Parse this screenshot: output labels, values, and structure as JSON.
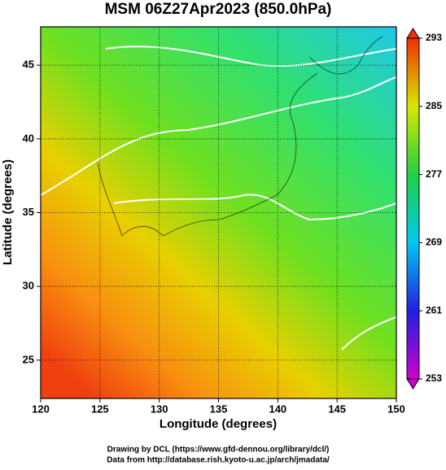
{
  "chart_data": {
    "type": "field",
    "title": "MSM 06Z27Apr2023 (850.0hPa)",
    "x_label": "Longitude (degrees)",
    "y_label": "Latitude  (degrees)",
    "xlim": [
      120,
      150
    ],
    "xticks": [
      120,
      125,
      130,
      135,
      140,
      145,
      150
    ],
    "ylim": [
      22.4,
      47.6
    ],
    "yticks": [
      25,
      30,
      35,
      40,
      45
    ],
    "grid": true,
    "colorbar": {
      "lim": [
        253,
        293
      ],
      "ticks": [
        253,
        261,
        269,
        277,
        285,
        293
      ],
      "colors": [
        "#d000d0",
        "#2020e0",
        "#00c8f0",
        "#20d040",
        "#d8e800",
        "#f03000"
      ]
    },
    "footer": [
      "Drawing by DCL (https://www.gfd-dennou.org/library/dcl/)",
      "Data from http://database.rish.kyoto-u.ac.jp/arch/jmadata/"
    ]
  }
}
